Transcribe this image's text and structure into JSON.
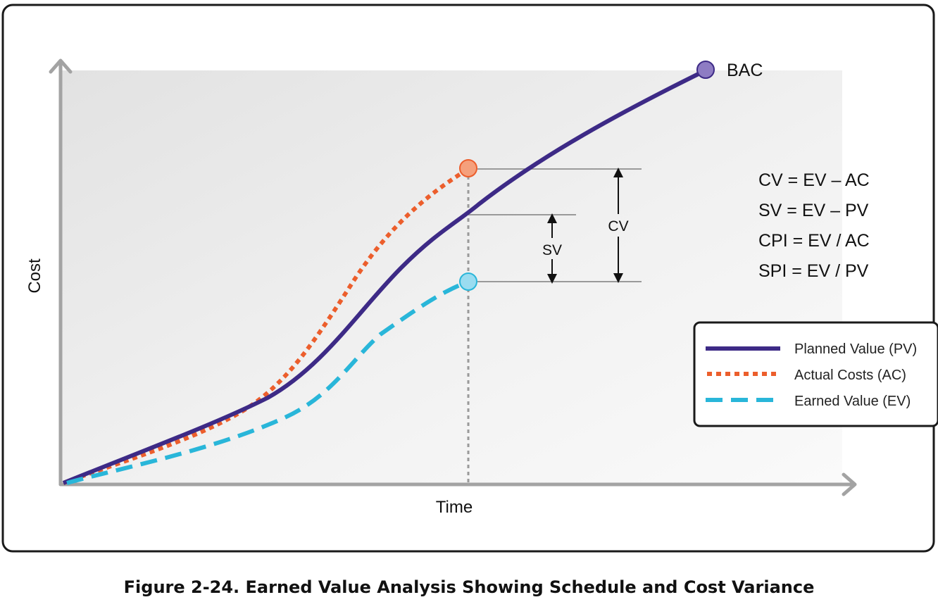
{
  "chart": {
    "x_axis_label": "Time",
    "y_axis_label": "Cost",
    "bac_label": "BAC",
    "sv_label": "SV",
    "cv_label": "CV",
    "formulas": [
      "CV = EV – AC",
      "SV = EV – PV",
      "CPI = EV / AC",
      "SPI = EV / PV"
    ],
    "legend": [
      {
        "label": "Planned Value (PV)",
        "color": "#3d2a86",
        "style": "solid"
      },
      {
        "label": "Actual Costs (AC)",
        "color": "#ec5e2c",
        "style": "dotted"
      },
      {
        "label": "Earned Value (EV)",
        "color": "#29b6d9",
        "style": "dashed"
      }
    ],
    "colors": {
      "pv": "#3d2a86",
      "ac": "#ec5e2c",
      "ev": "#29b6d9",
      "bac_marker": "#8e7cc3",
      "ac_marker": "#f5a07c",
      "ev_marker": "#9adcf0",
      "axis": "#a3a3a3"
    }
  },
  "caption": "Figure 2-24. Earned Value Analysis Showing Schedule and Cost Variance"
}
